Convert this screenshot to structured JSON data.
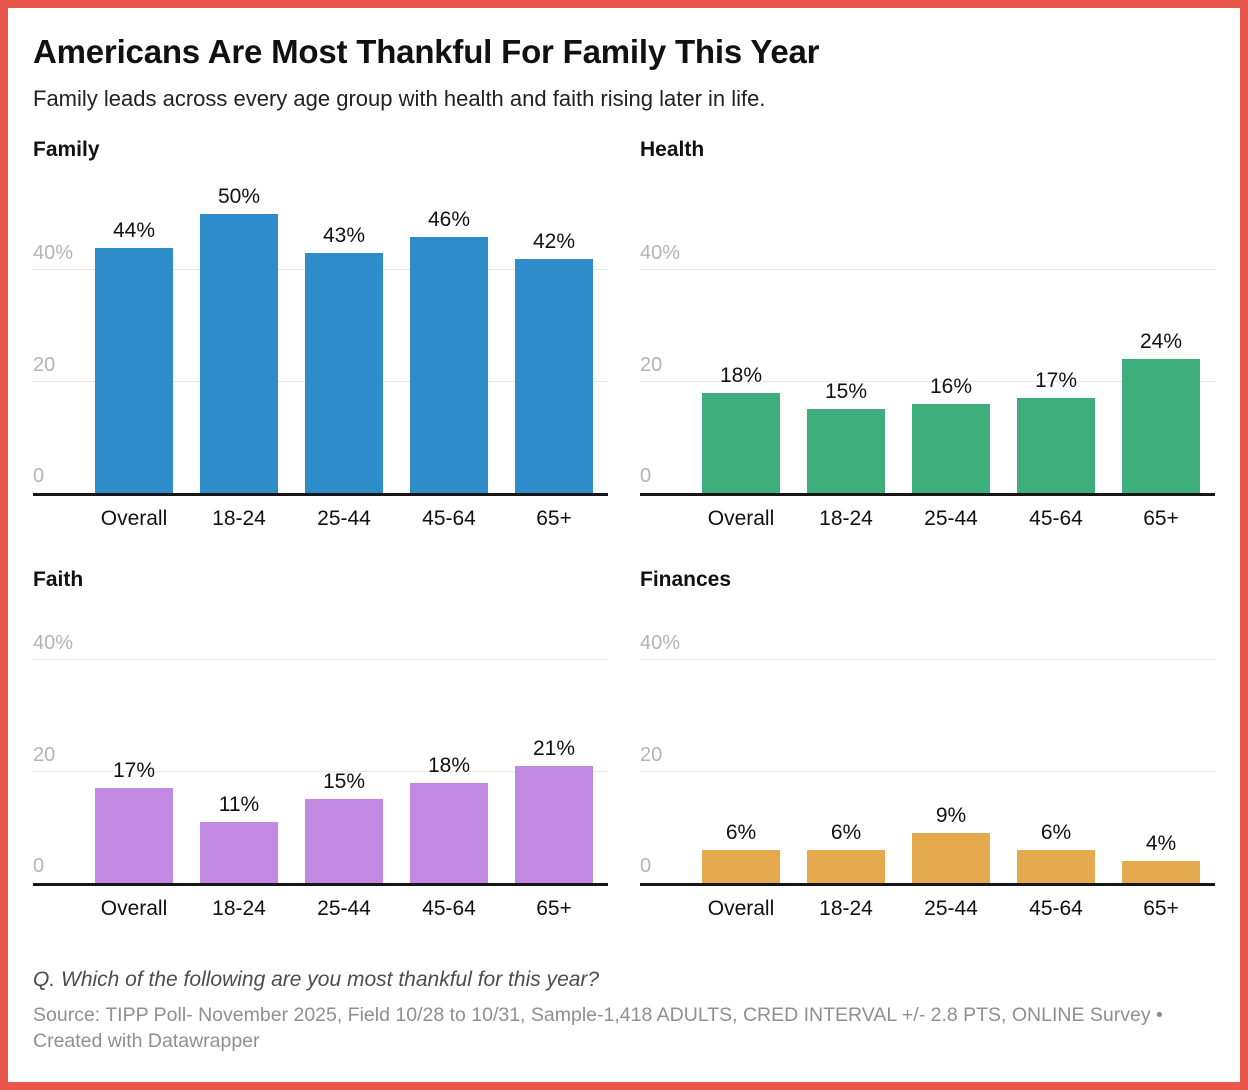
{
  "header": {
    "title": "Americans Are Most Thankful For Family This Year",
    "subtitle": "Family leads across every age group with health and faith rising later in life."
  },
  "footer": {
    "question": "Q. Which of the following are you most thankful for this year?",
    "source": "Source: TIPP Poll- November 2025, Field 10/28 to 10/31, Sample-1,418 ADULTS, CRED INTERVAL +/- 2.8 PTS, ONLINE Survey • Created with Datawrapper"
  },
  "colors": {
    "frame_border": "#E8564B",
    "axis_line": "#161616",
    "gridline": "#E7E7E7",
    "tick_label": "#B4B4B4",
    "text_dark": "#111111"
  },
  "chart_data": [
    {
      "type": "bar",
      "title": "Family",
      "color": "#2E8CCB",
      "categories": [
        "Overall",
        "18-24",
        "25-44",
        "45-64",
        "65+"
      ],
      "values": [
        44,
        50,
        43,
        46,
        42
      ],
      "labels": [
        "44%",
        "50%",
        "43%",
        "46%",
        "42%"
      ],
      "unit": "%",
      "ylim": [
        0,
        50
      ],
      "ticks": [
        {
          "value": 0,
          "label": "0"
        },
        {
          "value": 20,
          "label": "20"
        },
        {
          "value": 40,
          "label": "40%"
        }
      ],
      "grid": true,
      "legend": "none"
    },
    {
      "type": "bar",
      "title": "Health",
      "color": "#3FAE7D",
      "categories": [
        "Overall",
        "18-24",
        "25-44",
        "45-64",
        "65+"
      ],
      "values": [
        18,
        15,
        16,
        17,
        24
      ],
      "labels": [
        "18%",
        "15%",
        "16%",
        "17%",
        "24%"
      ],
      "unit": "%",
      "ylim": [
        0,
        50
      ],
      "ticks": [
        {
          "value": 0,
          "label": "0"
        },
        {
          "value": 20,
          "label": "20"
        },
        {
          "value": 40,
          "label": "40%"
        }
      ],
      "grid": true,
      "legend": "none"
    },
    {
      "type": "bar",
      "title": "Faith",
      "color": "#C289E3",
      "categories": [
        "Overall",
        "18-24",
        "25-44",
        "45-64",
        "65+"
      ],
      "values": [
        17,
        11,
        15,
        18,
        21
      ],
      "labels": [
        "17%",
        "11%",
        "15%",
        "18%",
        "21%"
      ],
      "unit": "%",
      "ylim": [
        0,
        45
      ],
      "ticks": [
        {
          "value": 0,
          "label": "0"
        },
        {
          "value": 20,
          "label": "20"
        },
        {
          "value": 40,
          "label": "40%"
        }
      ],
      "grid": true,
      "legend": "none"
    },
    {
      "type": "bar",
      "title": "Finances",
      "color": "#E5A94E",
      "categories": [
        "Overall",
        "18-24",
        "25-44",
        "45-64",
        "65+"
      ],
      "values": [
        6,
        6,
        9,
        6,
        4
      ],
      "labels": [
        "6%",
        "6%",
        "9%",
        "6%",
        "4%"
      ],
      "unit": "%",
      "ylim": [
        0,
        45
      ],
      "ticks": [
        {
          "value": 0,
          "label": "0"
        },
        {
          "value": 20,
          "label": "20"
        },
        {
          "value": 40,
          "label": "40%"
        }
      ],
      "grid": true,
      "legend": "none"
    }
  ]
}
